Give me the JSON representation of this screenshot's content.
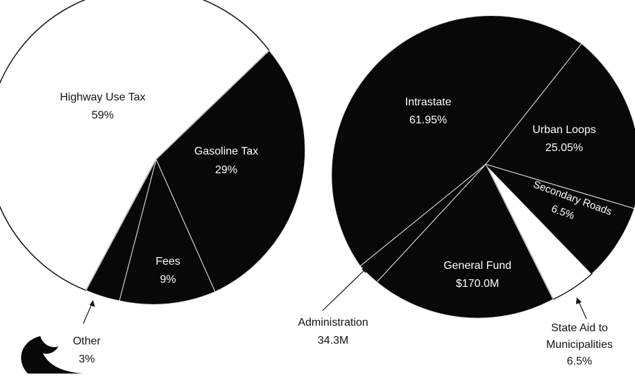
{
  "colors": {
    "dark": "#080808",
    "light": "#ffffff",
    "edge": "#111111",
    "divider": "#e6e6e6"
  },
  "chart_data": [
    {
      "type": "pie",
      "title": "",
      "slices": [
        {
          "label": "Highway Use Tax",
          "value_label": "59%",
          "value": 59,
          "color": "#ffffff"
        },
        {
          "label": "Gasoline Tax",
          "value_label": "29%",
          "value": 29,
          "color": "#080808"
        },
        {
          "label": "Fees",
          "value_label": "9%",
          "value": 9,
          "color": "#080808"
        },
        {
          "label": "Other",
          "value_label": "3%",
          "value": 3,
          "color": "#080808"
        }
      ]
    },
    {
      "type": "pie",
      "title": "",
      "slices": [
        {
          "label": "Intrastate",
          "value_label": "61.95%",
          "value": 61.95,
          "color": "#080808"
        },
        {
          "label": "Urban Loops",
          "value_label": "25.05%",
          "value": 25.05,
          "color": "#080808"
        },
        {
          "label": "Secondary Roads",
          "value_label": "6.5%",
          "value": 6.5,
          "color": "#080808"
        },
        {
          "label": "State Aid to Municipalities",
          "value_label": "6.5%",
          "value": 6.5,
          "color": "#ffffff"
        },
        {
          "label": "General Fund",
          "value_label": "$170.0M",
          "value": 170.0,
          "color": "#080808"
        },
        {
          "label": "Administration",
          "value_label": "34.3M",
          "value": 34.3,
          "color": "#080808"
        }
      ]
    }
  ]
}
